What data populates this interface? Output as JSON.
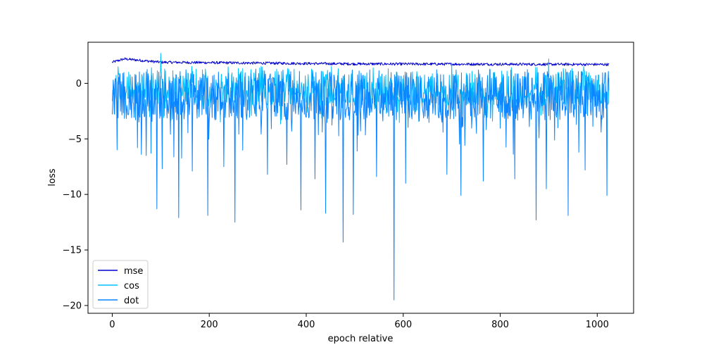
{
  "chart_data": {
    "type": "line",
    "title": "",
    "xlabel": "epoch relative",
    "ylabel": "loss",
    "xlim": [
      -50,
      1075
    ],
    "ylim": [
      -20.7,
      3.7
    ],
    "x_ticks": [
      0,
      200,
      400,
      600,
      800,
      1000
    ],
    "x_tick_labels": [
      "0",
      "200",
      "400",
      "600",
      "800",
      "1000"
    ],
    "y_ticks": [
      0,
      -5,
      -10,
      -15,
      -20
    ],
    "y_tick_labels": [
      "0",
      "−5",
      "−10",
      "−15",
      "−20"
    ],
    "grid": false,
    "legend_position": "lower-left",
    "n_points": 1025,
    "series": [
      {
        "name": "mse",
        "color": "#0000cd",
        "baseline": 1.85,
        "noise": 0.12,
        "keypoints": [
          [
            0,
            1.9
          ],
          [
            25,
            2.2
          ],
          [
            100,
            1.9
          ],
          [
            500,
            1.75
          ],
          [
            1024,
            1.7
          ]
        ]
      },
      {
        "name": "cos",
        "color": "#00bfff",
        "baseline": -0.2,
        "noise": 1.2,
        "keypoints": [
          [
            5,
            -2.8
          ],
          [
            100,
            2.7
          ],
          [
            700,
            1.8
          ],
          [
            900,
            2.2
          ]
        ]
      },
      {
        "name": "dot",
        "color": "#0a84ff",
        "baseline": -0.8,
        "noise": 1.4,
        "spikes": [
          [
            92,
            -11.3
          ],
          [
            137,
            -12.1
          ],
          [
            197,
            -11.9
          ],
          [
            253,
            -12.5
          ],
          [
            389,
            -11.4
          ],
          [
            440,
            -11.7
          ],
          [
            476,
            -14.3
          ],
          [
            497,
            -11.8
          ],
          [
            581,
            -19.5
          ],
          [
            719,
            -10.1
          ],
          [
            874,
            -12.3
          ],
          [
            940,
            -11.9
          ],
          [
            1020,
            -10.1
          ],
          [
            103,
            -7.7
          ],
          [
            165,
            -7.9
          ],
          [
            230,
            -7.5
          ],
          [
            320,
            -8.2
          ],
          [
            360,
            -7.3
          ],
          [
            418,
            -8.6
          ],
          [
            545,
            -8.4
          ],
          [
            605,
            -9.0
          ],
          [
            690,
            -8.2
          ],
          [
            765,
            -8.8
          ],
          [
            830,
            -8.6
          ],
          [
            895,
            -9.5
          ],
          [
            975,
            -7.8
          ],
          [
            10,
            -6.0
          ],
          [
            52,
            -5.8
          ],
          [
            60,
            -6.4
          ],
          [
            70,
            -6.5
          ],
          [
            80,
            -6.3
          ]
        ]
      }
    ]
  }
}
